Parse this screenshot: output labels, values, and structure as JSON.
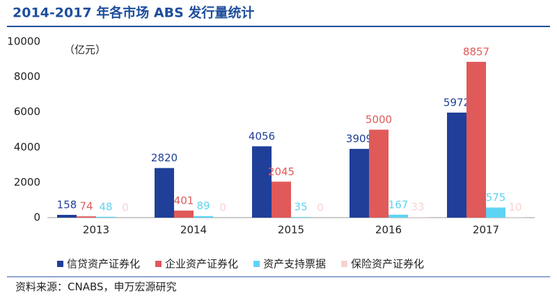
{
  "chart_data": {
    "type": "bar",
    "title": "2014-2017 年各市场 ABS 发行量统计",
    "unit": "（亿元）",
    "source": "资料来源：CNABS，申万宏源研究",
    "categories": [
      "2013",
      "2014",
      "2015",
      "2016",
      "2017"
    ],
    "series": [
      {
        "name": "信贷资产证券化",
        "color": "#1f3f99",
        "values": [
          158,
          2820,
          4056,
          3909,
          5972
        ]
      },
      {
        "name": "企业资产证券化",
        "color": "#e05a5a",
        "values": [
          74,
          401,
          2045,
          5000,
          8857
        ]
      },
      {
        "name": "资产支持票据",
        "color": "#5fd3f3",
        "values": [
          48,
          89,
          35,
          167,
          575
        ]
      },
      {
        "name": "保险资产证券化",
        "color": "#f7d2d2",
        "values": [
          0,
          0,
          0,
          33,
          10
        ]
      }
    ],
    "ylim": [
      0,
      10000
    ],
    "yticks": [
      0,
      2000,
      4000,
      6000,
      8000,
      10000
    ],
    "grid": false
  }
}
